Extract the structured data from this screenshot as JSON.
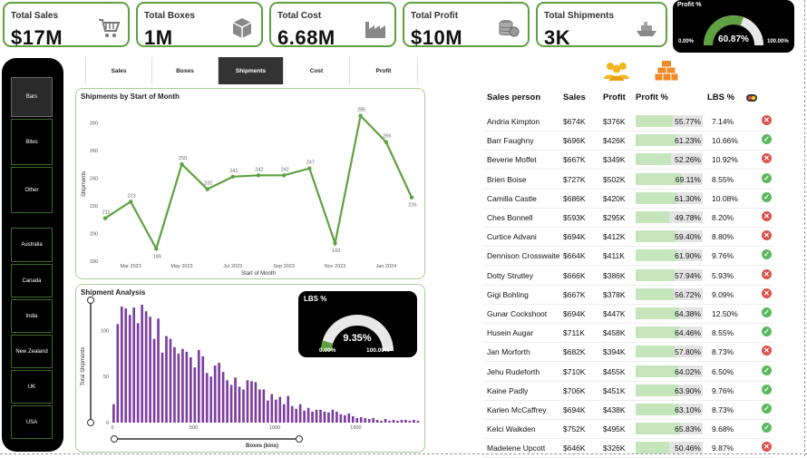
{
  "kpis": [
    {
      "label": "Total Sales",
      "value": "$17M",
      "icon": "cart-icon"
    },
    {
      "label": "Total Boxes",
      "value": "1M",
      "icon": "box-icon"
    },
    {
      "label": "Total Cost",
      "value": "6.68M",
      "icon": "factory-icon"
    },
    {
      "label": "Total Profit",
      "value": "$10M",
      "icon": "coins-icon"
    },
    {
      "label": "Total Shipments",
      "value": "3K",
      "icon": "ship-icon"
    }
  ],
  "profit_gauge": {
    "title": "Profit %",
    "value": "60.87%",
    "min": "0.00%",
    "max": "100.00%",
    "fraction": 0.6087
  },
  "lbs_gauge": {
    "title": "LBS %",
    "value": "9.35%",
    "min": "0.00%",
    "max": "100.00%",
    "fraction": 0.0935
  },
  "sidebar": {
    "items": [
      "Bars",
      "Bites",
      "Other",
      "Australia",
      "Canada",
      "India",
      "New Zealand",
      "UK",
      "USA"
    ],
    "selected": "Bars"
  },
  "tabs": {
    "items": [
      "Sales",
      "Boxes",
      "Shipments",
      "Cost",
      "Profit"
    ],
    "selected": "Shipments"
  },
  "colors": {
    "accent": "#5fa040",
    "purple": "#7b3fa0",
    "bad": "#d9534f",
    "good": "#5cb85c"
  },
  "line_chart": {
    "title": "Shipments by Start of Month",
    "xlabel": "Start of Month",
    "ylabel": "Shipments"
  },
  "hist_chart": {
    "title": "Shipment Analysis",
    "xlabel": "Boxes (bins)",
    "ylabel": "Total Shipments"
  },
  "table": {
    "headers": [
      "Sales person",
      "Sales",
      "Profit",
      "Profit %",
      "LBS %"
    ],
    "rows": [
      {
        "name": "Andria Kimpton",
        "sales": "$674K",
        "profit": "$376K",
        "pct": "55.77%",
        "pct_val": 55.77,
        "lbs": "7.14%",
        "status": "bad"
      },
      {
        "name": "Barr Faughny",
        "sales": "$696K",
        "profit": "$426K",
        "pct": "61.23%",
        "pct_val": 61.23,
        "lbs": "10.66%",
        "status": "good"
      },
      {
        "name": "Beverie Moffet",
        "sales": "$667K",
        "profit": "$349K",
        "pct": "52.26%",
        "pct_val": 52.26,
        "lbs": "10.92%",
        "status": "bad"
      },
      {
        "name": "Brien Boise",
        "sales": "$727K",
        "profit": "$502K",
        "pct": "69.11%",
        "pct_val": 69.11,
        "lbs": "8.55%",
        "status": "good"
      },
      {
        "name": "Camilla Castle",
        "sales": "$686K",
        "profit": "$420K",
        "pct": "61.30%",
        "pct_val": 61.3,
        "lbs": "10.08%",
        "status": "good"
      },
      {
        "name": "Ches Bonnell",
        "sales": "$593K",
        "profit": "$295K",
        "pct": "49.78%",
        "pct_val": 49.78,
        "lbs": "8.20%",
        "status": "bad"
      },
      {
        "name": "Curtice Advani",
        "sales": "$694K",
        "profit": "$412K",
        "pct": "59.40%",
        "pct_val": 59.4,
        "lbs": "8.80%",
        "status": "bad"
      },
      {
        "name": "Dennison Crosswaite",
        "sales": "$664K",
        "profit": "$411K",
        "pct": "61.90%",
        "pct_val": 61.9,
        "lbs": "9.76%",
        "status": "good"
      },
      {
        "name": "Dotty Strutley",
        "sales": "$666K",
        "profit": "$386K",
        "pct": "57.94%",
        "pct_val": 57.94,
        "lbs": "5.93%",
        "status": "bad"
      },
      {
        "name": "Gigi Bohling",
        "sales": "$667K",
        "profit": "$378K",
        "pct": "56.72%",
        "pct_val": 56.72,
        "lbs": "9.09%",
        "status": "bad"
      },
      {
        "name": "Gunar Cockshoot",
        "sales": "$694K",
        "profit": "$447K",
        "pct": "64.38%",
        "pct_val": 64.38,
        "lbs": "12.50%",
        "status": "good"
      },
      {
        "name": "Husein Augar",
        "sales": "$711K",
        "profit": "$458K",
        "pct": "64.46%",
        "pct_val": 64.46,
        "lbs": "8.55%",
        "status": "good"
      },
      {
        "name": "Jan Morforth",
        "sales": "$682K",
        "profit": "$394K",
        "pct": "57.80%",
        "pct_val": 57.8,
        "lbs": "8.73%",
        "status": "bad"
      },
      {
        "name": "Jehu Rudeforth",
        "sales": "$710K",
        "profit": "$455K",
        "pct": "64.02%",
        "pct_val": 64.02,
        "lbs": "6.50%",
        "status": "good"
      },
      {
        "name": "Kaine Padly",
        "sales": "$706K",
        "profit": "$451K",
        "pct": "63.90%",
        "pct_val": 63.9,
        "lbs": "9.76%",
        "status": "good"
      },
      {
        "name": "Karlen McCaffrey",
        "sales": "$694K",
        "profit": "$438K",
        "pct": "63.10%",
        "pct_val": 63.1,
        "lbs": "8.73%",
        "status": "good"
      },
      {
        "name": "Kelci Walkden",
        "sales": "$752K",
        "profit": "$495K",
        "pct": "65.83%",
        "pct_val": 65.83,
        "lbs": "9.68%",
        "status": "good"
      },
      {
        "name": "Madelene Upcott",
        "sales": "$646K",
        "profit": "$326K",
        "pct": "50.46%",
        "pct_val": 50.46,
        "lbs": "9.87%",
        "status": "bad"
      }
    ]
  },
  "chart_data": [
    {
      "type": "line",
      "title": "Shipments by Start of Month",
      "xlabel": "Start of Month",
      "ylabel": "Shipments",
      "categories": [
        "Feb 2023",
        "Mar 2023",
        "Apr 2023",
        "May 2023",
        "Jun 2023",
        "Jul 2023",
        "Aug 2023",
        "Sep 2023",
        "Oct 2023",
        "Nov 2023",
        "Dec 2023",
        "Jan 2024",
        "Feb 2024"
      ],
      "values": [
        211,
        223,
        189,
        250,
        232,
        241,
        242,
        242,
        247,
        193,
        285,
        266,
        226
      ],
      "xticks": [
        "Mar 2023",
        "May 2023",
        "Jul 2023",
        "Sep 2023",
        "Nov 2023",
        "Jan 2024"
      ],
      "yticks": [
        180,
        200,
        220,
        240,
        260,
        280
      ],
      "ylim": [
        180,
        290
      ]
    },
    {
      "type": "bar",
      "title": "Shipment Analysis",
      "xlabel": "Boxes (bins)",
      "ylabel": "Total Shipments",
      "bin_width": 25,
      "xticks": [
        0,
        500,
        1000,
        1500
      ],
      "yticks": [
        0,
        50,
        100
      ],
      "ylim": [
        0,
        130
      ],
      "xlim": [
        0,
        1900
      ],
      "values": [
        20,
        107,
        126,
        124,
        117,
        125,
        108,
        128,
        121,
        115,
        91,
        113,
        76,
        94,
        91,
        82,
        75,
        80,
        77,
        71,
        60,
        79,
        72,
        54,
        50,
        62,
        65,
        55,
        46,
        41,
        49,
        39,
        36,
        46,
        45,
        44,
        36,
        36,
        24,
        31,
        25,
        28,
        20,
        29,
        18,
        15,
        20,
        13,
        16,
        12,
        14,
        14,
        12,
        11,
        14,
        12,
        9,
        8,
        10,
        7,
        5,
        6,
        5,
        4,
        5,
        3,
        2,
        4,
        2,
        3,
        2,
        3,
        3,
        2,
        3,
        2
      ]
    }
  ]
}
